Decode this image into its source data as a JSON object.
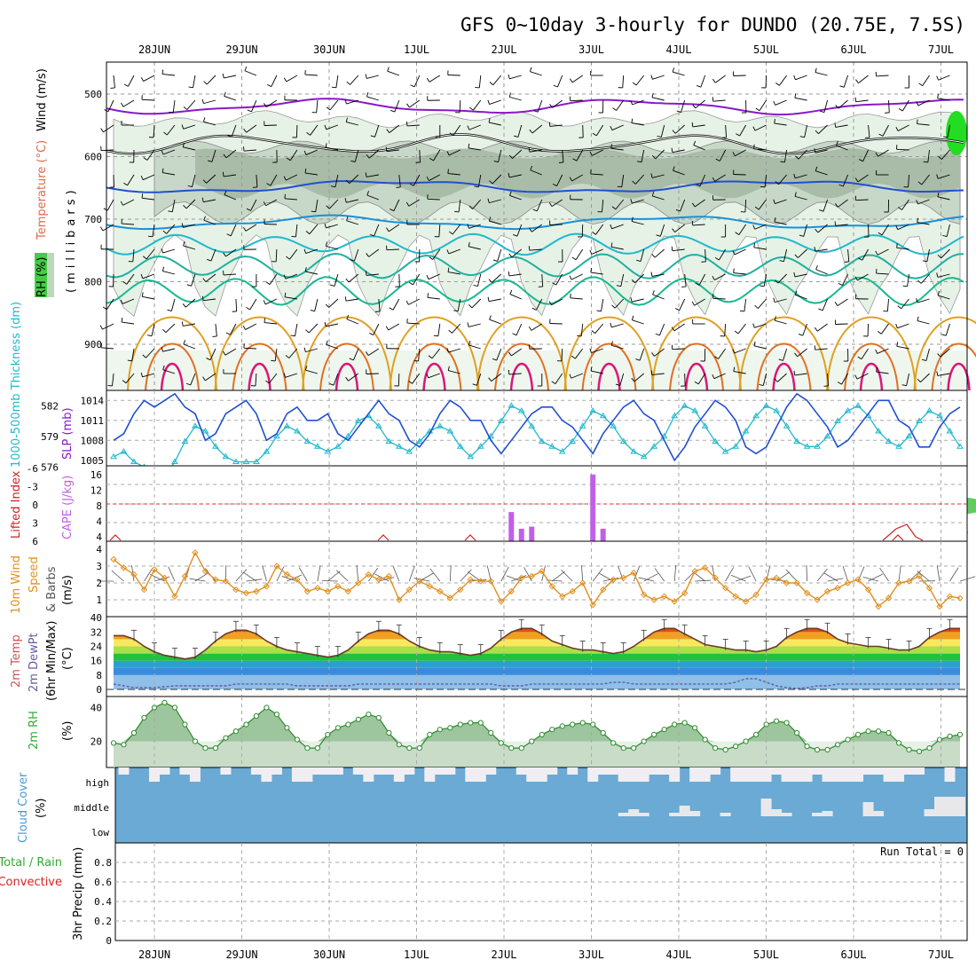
{
  "title": "GFS 0~10day 3-hourly for DUNDO (20.75E, 7.5S)",
  "dates": [
    "28JUN",
    "29JUN",
    "30JUN",
    "1JUL",
    "2JUL",
    "3JUL",
    "4JUL",
    "5JUL",
    "6JUL",
    "7JUL"
  ],
  "run_total_label": "Run Total = 0",
  "colors": {
    "purple": "#8a18c8",
    "blue": "#2050d0",
    "cyan": "#22b8cc",
    "teal": "#18b890",
    "orange": "#e0a020",
    "magenta": "#d81878",
    "rh_green": "#44cc44",
    "cape": "#c060e8",
    "li": "#cc2222",
    "wind": "#e09020",
    "dew": "#6a5aa0",
    "rh2m": "#5aa05a",
    "cloud": "#6aaad4"
  },
  "panels": {
    "upper": {
      "label_rh": "RH (%)",
      "label_temp": "Temperature (°C)",
      "label_wind": "Wind (m/s)",
      "label_axis": "(millibars)",
      "y_ticks": [
        "500",
        "600",
        "700",
        "800",
        "900"
      ]
    },
    "slp": {
      "label_thick": "1000-500mb Thickness (dm)",
      "label_slp": "SLP (mb)",
      "left_ticks": [
        "582",
        "579",
        "576"
      ],
      "right_ticks": [
        "1014",
        "1011",
        "1008",
        "1005"
      ]
    },
    "cape": {
      "label_li": "Lifted Index",
      "label_cape": "CAPE (J/kg)",
      "left_ticks": [
        "-6",
        "-3",
        "0",
        "3",
        "6"
      ],
      "right_ticks": [
        "16",
        "12",
        "8",
        "4",
        "4"
      ]
    },
    "wind10": {
      "label_a": "10m Wind",
      "label_b": "Speed",
      "label_c": "& Barbs",
      "label_unit": "(m/s)",
      "ticks": [
        "4",
        "3",
        "2",
        "1"
      ]
    },
    "temp2m": {
      "label_a": "2m Temp",
      "label_b": "2m DewPt",
      "label_c": "(6hr Min/Max)",
      "label_unit": "(°C)",
      "ticks": [
        "40",
        "32",
        "24",
        "16",
        "8",
        "0"
      ]
    },
    "rh2m": {
      "label": "2m RH",
      "label_unit": "(%)",
      "ticks": [
        "40",
        "20"
      ]
    },
    "cloud": {
      "label": "Cloud Cover",
      "label_unit": "(%)",
      "levels": [
        "high",
        "middle",
        "low"
      ]
    },
    "precip": {
      "label_a": "Total / Rain",
      "label_b": "Convective",
      "label_axis": "3hr Precip (mm)",
      "ticks": [
        "0.8",
        "0.6",
        "0.4",
        "0.2",
        "0"
      ]
    }
  },
  "chart_data": [
    {
      "type": "line",
      "title": "Sea level pressure (mb)",
      "series": [
        {
          "name": "SLP (mb)",
          "values": [
            1008,
            1009,
            1012,
            1014,
            1013,
            1014,
            1015,
            1013,
            1012,
            1008,
            1009,
            1012,
            1013,
            1014,
            1012,
            1008,
            1009,
            1012,
            1013,
            1011,
            1011,
            1012,
            1009,
            1008,
            1010,
            1012,
            1014,
            1012,
            1011,
            1008,
            1007,
            1009,
            1012,
            1014,
            1013,
            1011,
            1011,
            1008,
            1006,
            1008,
            1010,
            1012,
            1013,
            1013,
            1011,
            1010,
            1008,
            1006,
            1009,
            1011,
            1013,
            1014,
            1012,
            1011,
            1008,
            1005,
            1007,
            1010,
            1012,
            1014,
            1013,
            1011,
            1007,
            1006,
            1007,
            1010,
            1013,
            1015,
            1014,
            1012,
            1010,
            1007,
            1008,
            1010,
            1012,
            1014,
            1014,
            1011,
            1010,
            1007,
            1007,
            1010,
            1012,
            1013
          ]
        }
      ]
    },
    {
      "type": "line",
      "title": "1000-500mb thickness (dm)",
      "series": [
        {
          "name": "Thickness (dm)",
          "values": [
            577,
            577.5,
            576.5,
            576,
            575.5,
            575,
            576.5,
            578.5,
            580,
            579.5,
            578,
            577,
            576.5,
            576.5,
            576.5,
            577.5,
            579,
            580,
            579.5,
            578.5,
            578,
            577.5,
            578,
            579,
            580.5,
            581,
            580,
            578.5,
            578,
            577.5,
            578.5,
            579.5,
            580,
            579.5,
            578,
            577,
            578,
            579,
            580.5,
            582,
            581.5,
            580,
            578.5,
            578,
            577.5,
            578.5,
            580,
            581.5,
            581,
            580,
            578.5,
            577.5,
            577,
            578,
            579,
            581,
            582,
            581.5,
            580,
            578.5,
            577.5,
            578,
            579.5,
            581,
            582,
            581.5,
            580,
            578.5,
            578,
            578,
            579,
            580.5,
            581.5,
            582,
            581,
            579.5,
            578.5,
            578,
            579,
            580.5,
            581.5,
            581,
            579.5,
            578
          ]
        }
      ]
    },
    {
      "type": "bar",
      "title": "CAPE (J/kg)",
      "x": [
        "2JUL 12Z",
        "2JUL 15Z",
        "2JUL 18Z",
        "3JUL 12Z",
        "3JUL 15Z"
      ],
      "series": [
        {
          "name": "CAPE (J/kg)",
          "values": [
            7,
            3,
            3.5,
            16,
            3
          ]
        }
      ]
    },
    {
      "type": "line",
      "title": "10m wind speed (m/s)",
      "series": [
        {
          "name": "10m Wind Speed (m/s)",
          "values": [
            3.4,
            2.9,
            2.5,
            1.6,
            2.8,
            2.3,
            1.2,
            2.4,
            3.8,
            2.7,
            2.2,
            2.1,
            1.6,
            1.4,
            1.5,
            1.8,
            3,
            2.5,
            2.2,
            1.5,
            1.7,
            1.5,
            1.8,
            1.5,
            2,
            2.5,
            2.2,
            2.4,
            1,
            1.6,
            2.1,
            1.8,
            1.5,
            1.1,
            1.6,
            2.2,
            2.1,
            2.1,
            0.9,
            1.5,
            2.3,
            2.4,
            2.7,
            1.8,
            1.2,
            1.5,
            2,
            0.7,
            1.6,
            2.2,
            2.3,
            2.6,
            1.3,
            1,
            1.2,
            0.9,
            1.4,
            2.7,
            2.9,
            2.3,
            1.7,
            1.2,
            0.9,
            1.3,
            2.2,
            2.3,
            2,
            2,
            1.4,
            1,
            1.5,
            1.7,
            2,
            2.2,
            1.6,
            0.6,
            1.1,
            2,
            2.1,
            2.4,
            1.7,
            0.6,
            1.2,
            1.1
          ]
        }
      ]
    },
    {
      "type": "area",
      "title": "2m temperature (°C)",
      "series": [
        {
          "name": "2m Temp (°C)",
          "values": [
            30,
            30,
            28,
            24,
            21,
            19,
            18,
            17,
            18,
            22,
            27,
            31,
            33,
            33,
            31,
            27,
            24,
            22,
            21,
            20,
            19,
            18,
            19,
            22,
            27,
            31,
            33,
            33,
            31,
            27,
            24,
            22,
            21,
            21,
            20,
            19,
            20,
            23,
            28,
            32,
            34,
            34,
            31,
            27,
            25,
            23,
            22,
            22,
            21,
            20,
            21,
            24,
            28,
            32,
            34,
            34,
            31,
            28,
            25,
            24,
            23,
            22,
            22,
            21,
            22,
            24,
            29,
            32,
            34,
            34,
            32,
            28,
            26,
            25,
            24,
            24,
            23,
            22,
            22,
            24,
            29,
            32,
            34,
            34
          ]
        }
      ]
    },
    {
      "type": "line",
      "title": "2m dew point (°C)",
      "series": [
        {
          "name": "2m DewPt (°C)",
          "values": [
            3,
            2,
            1,
            1,
            1,
            1.5,
            2,
            2,
            2,
            2,
            2,
            2,
            3,
            3,
            3,
            3,
            3,
            3,
            2,
            2,
            2,
            2,
            2,
            2,
            3,
            3,
            3,
            3,
            3,
            3,
            3,
            3,
            3,
            3,
            3,
            3,
            3,
            3,
            2,
            2,
            2,
            3,
            3,
            3,
            3,
            3,
            3,
            3,
            3,
            4,
            4,
            3,
            3,
            3,
            3,
            3,
            3,
            3,
            3,
            3,
            3,
            4,
            6,
            6,
            4,
            2,
            1,
            0.5,
            1,
            2,
            2,
            3,
            3,
            3,
            3,
            3,
            3,
            3,
            3,
            3,
            3,
            3,
            3,
            3
          ]
        }
      ]
    },
    {
      "type": "area",
      "title": "2m relative humidity (%)",
      "series": [
        {
          "name": "2m RH (%)",
          "values": [
            19,
            18,
            25,
            34,
            40,
            43,
            40,
            30,
            20,
            16,
            16,
            22,
            26,
            30,
            35,
            40,
            36,
            28,
            21,
            16,
            16,
            24,
            28,
            30,
            33,
            36,
            34,
            25,
            18,
            16,
            16,
            24,
            27,
            28,
            30,
            31,
            31,
            25,
            19,
            16,
            16,
            20,
            24,
            27,
            29,
            30,
            31,
            30,
            25,
            19,
            16,
            16,
            20,
            24,
            27,
            30,
            31,
            28,
            21,
            16,
            15,
            17,
            20,
            24,
            30,
            32,
            31,
            25,
            17,
            15,
            15,
            18,
            21,
            24,
            26,
            26,
            25,
            19,
            15,
            14,
            16,
            21,
            23,
            24
          ]
        }
      ]
    },
    {
      "type": "bar",
      "title": "3hr precipitation (mm)",
      "series": [
        {
          "name": "Total / Rain",
          "values": []
        },
        {
          "name": "Convective",
          "values": []
        }
      ]
    }
  ]
}
